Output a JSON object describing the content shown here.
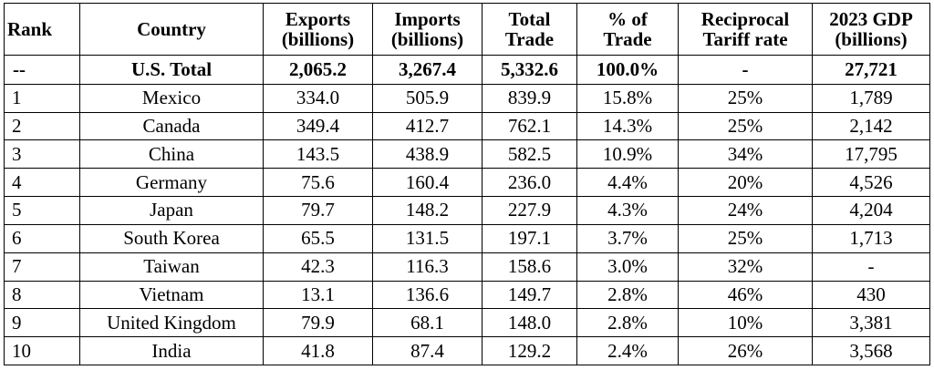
{
  "headers": {
    "rank": "Rank",
    "country": "Country",
    "exports": [
      "Exports",
      "(billions)"
    ],
    "imports": [
      "Imports",
      "(billions)"
    ],
    "total_trade": [
      "Total",
      "Trade"
    ],
    "pct_trade": [
      "% of",
      "Trade"
    ],
    "tariff": [
      "Reciprocal",
      "Tariff rate"
    ],
    "gdp": [
      "2023 GDP",
      "(billions)"
    ]
  },
  "total_row": {
    "rank": "--",
    "country": "U.S. Total",
    "exports": "2,065.2",
    "imports": "3,267.4",
    "total_trade": "5,332.6",
    "pct_trade": "100.0%",
    "tariff": "-",
    "gdp": "27,721"
  },
  "rows": [
    {
      "rank": "1",
      "country": "Mexico",
      "exports": "334.0",
      "imports": "505.9",
      "total_trade": "839.9",
      "pct_trade": "15.8%",
      "tariff": "25%",
      "gdp": "1,789"
    },
    {
      "rank": "2",
      "country": "Canada",
      "exports": "349.4",
      "imports": "412.7",
      "total_trade": "762.1",
      "pct_trade": "14.3%",
      "tariff": "25%",
      "gdp": "2,142"
    },
    {
      "rank": "3",
      "country": "China",
      "exports": "143.5",
      "imports": "438.9",
      "total_trade": "582.5",
      "pct_trade": "10.9%",
      "tariff": "34%",
      "gdp": "17,795"
    },
    {
      "rank": "4",
      "country": "Germany",
      "exports": "75.6",
      "imports": "160.4",
      "total_trade": "236.0",
      "pct_trade": "4.4%",
      "tariff": "20%",
      "gdp": "4,526"
    },
    {
      "rank": "5",
      "country": "Japan",
      "exports": "79.7",
      "imports": "148.2",
      "total_trade": "227.9",
      "pct_trade": "4.3%",
      "tariff": "24%",
      "gdp": "4,204"
    },
    {
      "rank": "6",
      "country": "South Korea",
      "exports": "65.5",
      "imports": "131.5",
      "total_trade": "197.1",
      "pct_trade": "3.7%",
      "tariff": "25%",
      "gdp": "1,713"
    },
    {
      "rank": "7",
      "country": "Taiwan",
      "exports": "42.3",
      "imports": "116.3",
      "total_trade": "158.6",
      "pct_trade": "3.0%",
      "tariff": "32%",
      "gdp": "-"
    },
    {
      "rank": "8",
      "country": "Vietnam",
      "exports": "13.1",
      "imports": "136.6",
      "total_trade": "149.7",
      "pct_trade": "2.8%",
      "tariff": "46%",
      "gdp": "430"
    },
    {
      "rank": "9",
      "country": "United Kingdom",
      "exports": "79.9",
      "imports": "68.1",
      "total_trade": "148.0",
      "pct_trade": "2.8%",
      "tariff": "10%",
      "gdp": "3,381"
    },
    {
      "rank": "10",
      "country": "India",
      "exports": "41.8",
      "imports": "87.4",
      "total_trade": "129.2",
      "pct_trade": "2.4%",
      "tariff": "26%",
      "gdp": "3,568"
    }
  ]
}
